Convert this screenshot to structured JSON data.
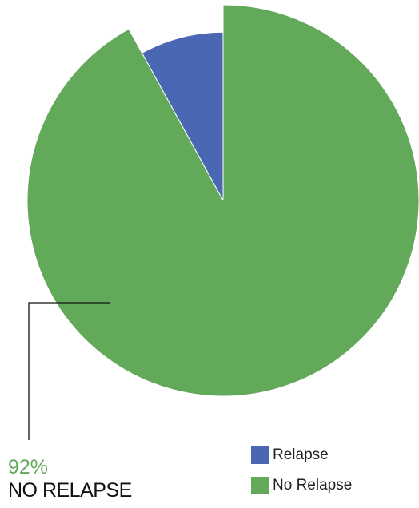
{
  "chart_data": {
    "type": "pie",
    "title": "",
    "slices": [
      {
        "name": "Relapse",
        "value": 8,
        "color": "#4a67b3",
        "exploded": false
      },
      {
        "name": "No Relapse",
        "value": 92,
        "color": "#63a95a",
        "exploded": true
      }
    ],
    "callout": {
      "percent_label": "92%",
      "category_label": "NO RELAPSE"
    },
    "legend": {
      "placement": "bottom-right",
      "items": [
        {
          "label": "Relapse",
          "color": "#4a67b3"
        },
        {
          "label": "No Relapse",
          "color": "#63a95a"
        }
      ]
    }
  }
}
